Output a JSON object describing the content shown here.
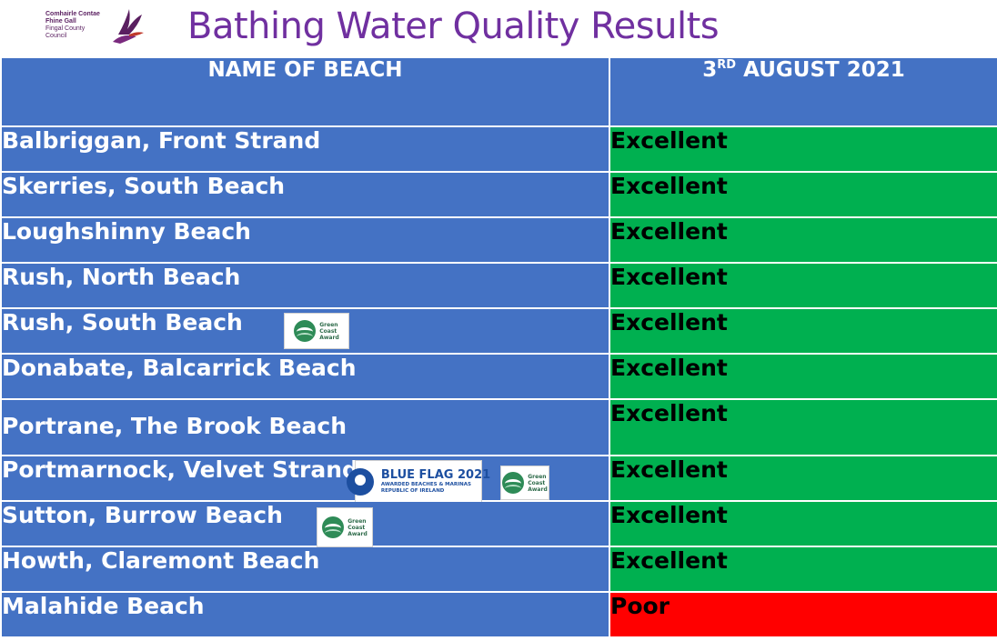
{
  "header": {
    "council_name_line1": "Comhairle Contae",
    "council_name_line2": "Fhine Gall",
    "council_name_line3": "Fingal County",
    "council_name_line4": "Council",
    "title": "Bathing Water Quality Results"
  },
  "table": {
    "col_name_header": "NAME OF BEACH",
    "col_date_day": "3",
    "col_date_suffix": "RD",
    "col_date_rest": " AUGUST 2021",
    "rows": [
      {
        "name": "Balbriggan, Front Strand",
        "result": "Excellent"
      },
      {
        "name": "Skerries, South Beach",
        "result": "Excellent"
      },
      {
        "name": "Loughshinny Beach",
        "result": "Excellent"
      },
      {
        "name": "Rush, North Beach",
        "result": "Excellent"
      },
      {
        "name": "Rush, South Beach",
        "result": "Excellent"
      },
      {
        "name": "Donabate, Balcarrick Beach",
        "result": "Excellent"
      },
      {
        "name": "Portrane, The Brook Beach",
        "result": "Excellent"
      },
      {
        "name": "Portmarnock, Velvet Strand",
        "result": "Excellent"
      },
      {
        "name": "Sutton, Burrow Beach",
        "result": "Excellent"
      },
      {
        "name": "Howth, Claremont Beach",
        "result": "Excellent"
      },
      {
        "name": "Malahide Beach",
        "result": "Poor"
      }
    ]
  },
  "badges": {
    "green_coast_line1": "Green",
    "green_coast_line2": "Coast",
    "green_coast_line3": "Award",
    "blue_flag_title": "BLUE FLAG 2021",
    "blue_flag_line2": "AWARDED BEACHES & MARINAS",
    "blue_flag_line3": "REPUBLIC OF IRELAND"
  },
  "colors": {
    "header_blue": "#4472c4",
    "excellent_green": "#00b050",
    "poor_red": "#ff0000",
    "title_purple": "#7030a0"
  }
}
